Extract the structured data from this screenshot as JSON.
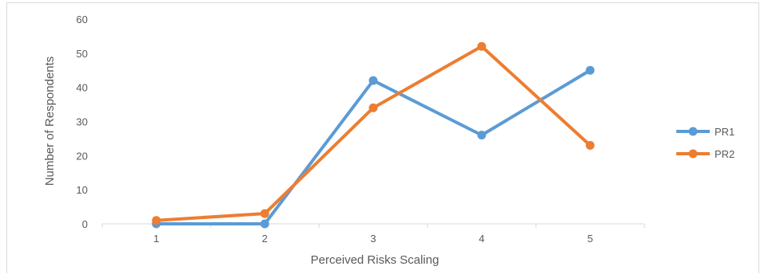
{
  "chart_data": {
    "type": "line",
    "title": "",
    "xlabel": "Perceived Risks Scaling",
    "ylabel": "Number of Respondents",
    "categories": [
      "1",
      "2",
      "3",
      "4",
      "5"
    ],
    "ylim": [
      0,
      60
    ],
    "yticks": [
      "0",
      "10",
      "20",
      "30",
      "40",
      "50",
      "60"
    ],
    "grid": false,
    "legend_position": "right",
    "series": [
      {
        "name": "PR1",
        "color": "#5b9bd5",
        "values": [
          0,
          0,
          42,
          26,
          45
        ]
      },
      {
        "name": "PR2",
        "color": "#ed7d31",
        "values": [
          1,
          3,
          34,
          52,
          23
        ]
      }
    ]
  }
}
